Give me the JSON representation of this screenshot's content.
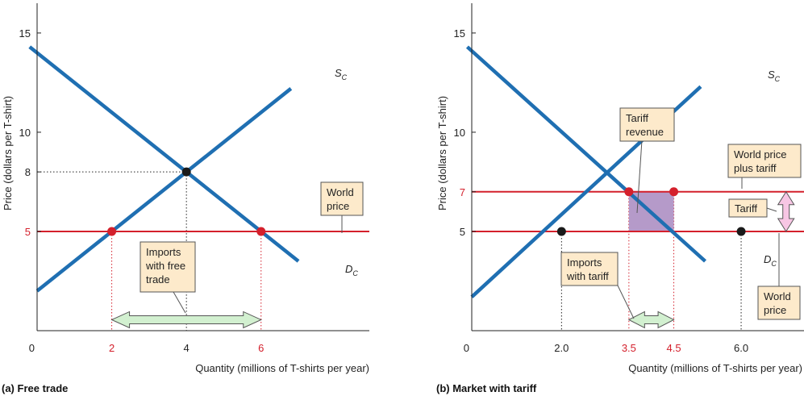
{
  "chart_data": [
    {
      "type": "line",
      "panel_label": "(a) Free trade",
      "xlabel": "Quantity (millions of T-shirts per year)",
      "ylabel": "Price (dollars per T-shirt)",
      "xlim": [
        0,
        8.9
      ],
      "ylim": [
        0,
        16.5
      ],
      "x_ticks": [
        {
          "value": 0,
          "label": "0",
          "red": false
        },
        {
          "value": 2,
          "label": "2",
          "red": true
        },
        {
          "value": 4,
          "label": "4",
          "red": false
        },
        {
          "value": 6,
          "label": "6",
          "red": true
        }
      ],
      "y_ticks": [
        {
          "value": 5,
          "label": "5",
          "red": true
        },
        {
          "value": 8,
          "label": "8",
          "red": false
        },
        {
          "value": 10,
          "label": "10",
          "red": false
        },
        {
          "value": 15,
          "label": "15",
          "red": false
        }
      ],
      "series": [
        {
          "name": "S",
          "sub": "C",
          "kind": "supply",
          "points": [
            [
              0,
              2
            ],
            [
              6.8,
              12.2
            ]
          ]
        },
        {
          "name": "D",
          "sub": "C",
          "kind": "demand",
          "points": [
            [
              -0.2,
              14.3
            ],
            [
              7.0,
              3.5
            ]
          ]
        }
      ],
      "hlines": [
        {
          "y": 5,
          "x_end": 8.9
        }
      ],
      "points": [
        {
          "x": 2,
          "y": 5,
          "color": "red"
        },
        {
          "x": 6,
          "y": 5,
          "color": "red"
        },
        {
          "x": 4,
          "y": 8,
          "color": "black"
        }
      ],
      "shaded_region": null,
      "range_arrow": {
        "x1": 2,
        "x2": 6,
        "y": 0.55
      },
      "vertical_arrow": null,
      "callouts": [
        {
          "lines": [
            "World",
            "price"
          ]
        },
        {
          "lines": [
            "Imports",
            "with free",
            "trade"
          ]
        }
      ]
    },
    {
      "type": "line",
      "panel_label": "(b) Market with tariff",
      "xlabel": "Quantity (millions of T-shirts per year)",
      "ylabel": "Price (dollars per T-shirt)",
      "xlim": [
        0,
        7.4
      ],
      "ylim": [
        0,
        16.5
      ],
      "x_ticks": [
        {
          "value": 0,
          "label": "0",
          "red": false
        },
        {
          "value": 2.0,
          "label": "2.0",
          "red": false
        },
        {
          "value": 3.5,
          "label": "3.5",
          "red": true
        },
        {
          "value": 4.5,
          "label": "4.5",
          "red": true
        },
        {
          "value": 6.0,
          "label": "6.0",
          "red": false
        }
      ],
      "y_ticks": [
        {
          "value": 5,
          "label": "5",
          "red": false
        },
        {
          "value": 7,
          "label": "7",
          "red": true
        },
        {
          "value": 10,
          "label": "10",
          "red": false
        },
        {
          "value": 15,
          "label": "15",
          "red": false
        }
      ],
      "series": [
        {
          "name": "S",
          "sub": "C",
          "kind": "supply",
          "points": [
            [
              0,
              1.7
            ],
            [
              5.1,
              12.3
            ]
          ]
        },
        {
          "name": "D",
          "sub": "C",
          "kind": "demand",
          "points": [
            [
              -0.1,
              14.3
            ],
            [
              5.2,
              3.5
            ]
          ]
        }
      ],
      "hlines": [
        {
          "y": 7,
          "x_end": 7.4
        },
        {
          "y": 5,
          "x_end": 7.4
        }
      ],
      "points": [
        {
          "x": 2.0,
          "y": 5,
          "color": "black"
        },
        {
          "x": 6.0,
          "y": 5,
          "color": "black"
        },
        {
          "x": 3.5,
          "y": 7,
          "color": "red"
        },
        {
          "x": 4.5,
          "y": 7,
          "color": "red"
        }
      ],
      "shaded_region": {
        "x1": 3.5,
        "x2": 4.5,
        "y1": 5,
        "y2": 7
      },
      "range_arrow": {
        "x1": 3.5,
        "x2": 4.5,
        "y": 0.55
      },
      "vertical_arrow": {
        "x": 7.0,
        "y1": 5,
        "y2": 7
      },
      "callouts": [
        {
          "lines": [
            "Tariff",
            "revenue"
          ]
        },
        {
          "lines": [
            "World price",
            "plus tariff"
          ]
        },
        {
          "lines": [
            "Tariff"
          ]
        },
        {
          "lines": [
            "Imports",
            "with tariff"
          ]
        },
        {
          "lines": [
            "World",
            "price"
          ]
        }
      ]
    }
  ],
  "colors": {
    "curve_blue": "#1f6fb2",
    "price_red": "#d4202c",
    "point_red": "#d4202c",
    "point_black": "#1a1a1a",
    "callout_fill": "#fdeacb",
    "arrow_green": "#d2f0d0",
    "arrow_pink": "#f7c6e4",
    "shade_purple": "#b59ac9"
  }
}
